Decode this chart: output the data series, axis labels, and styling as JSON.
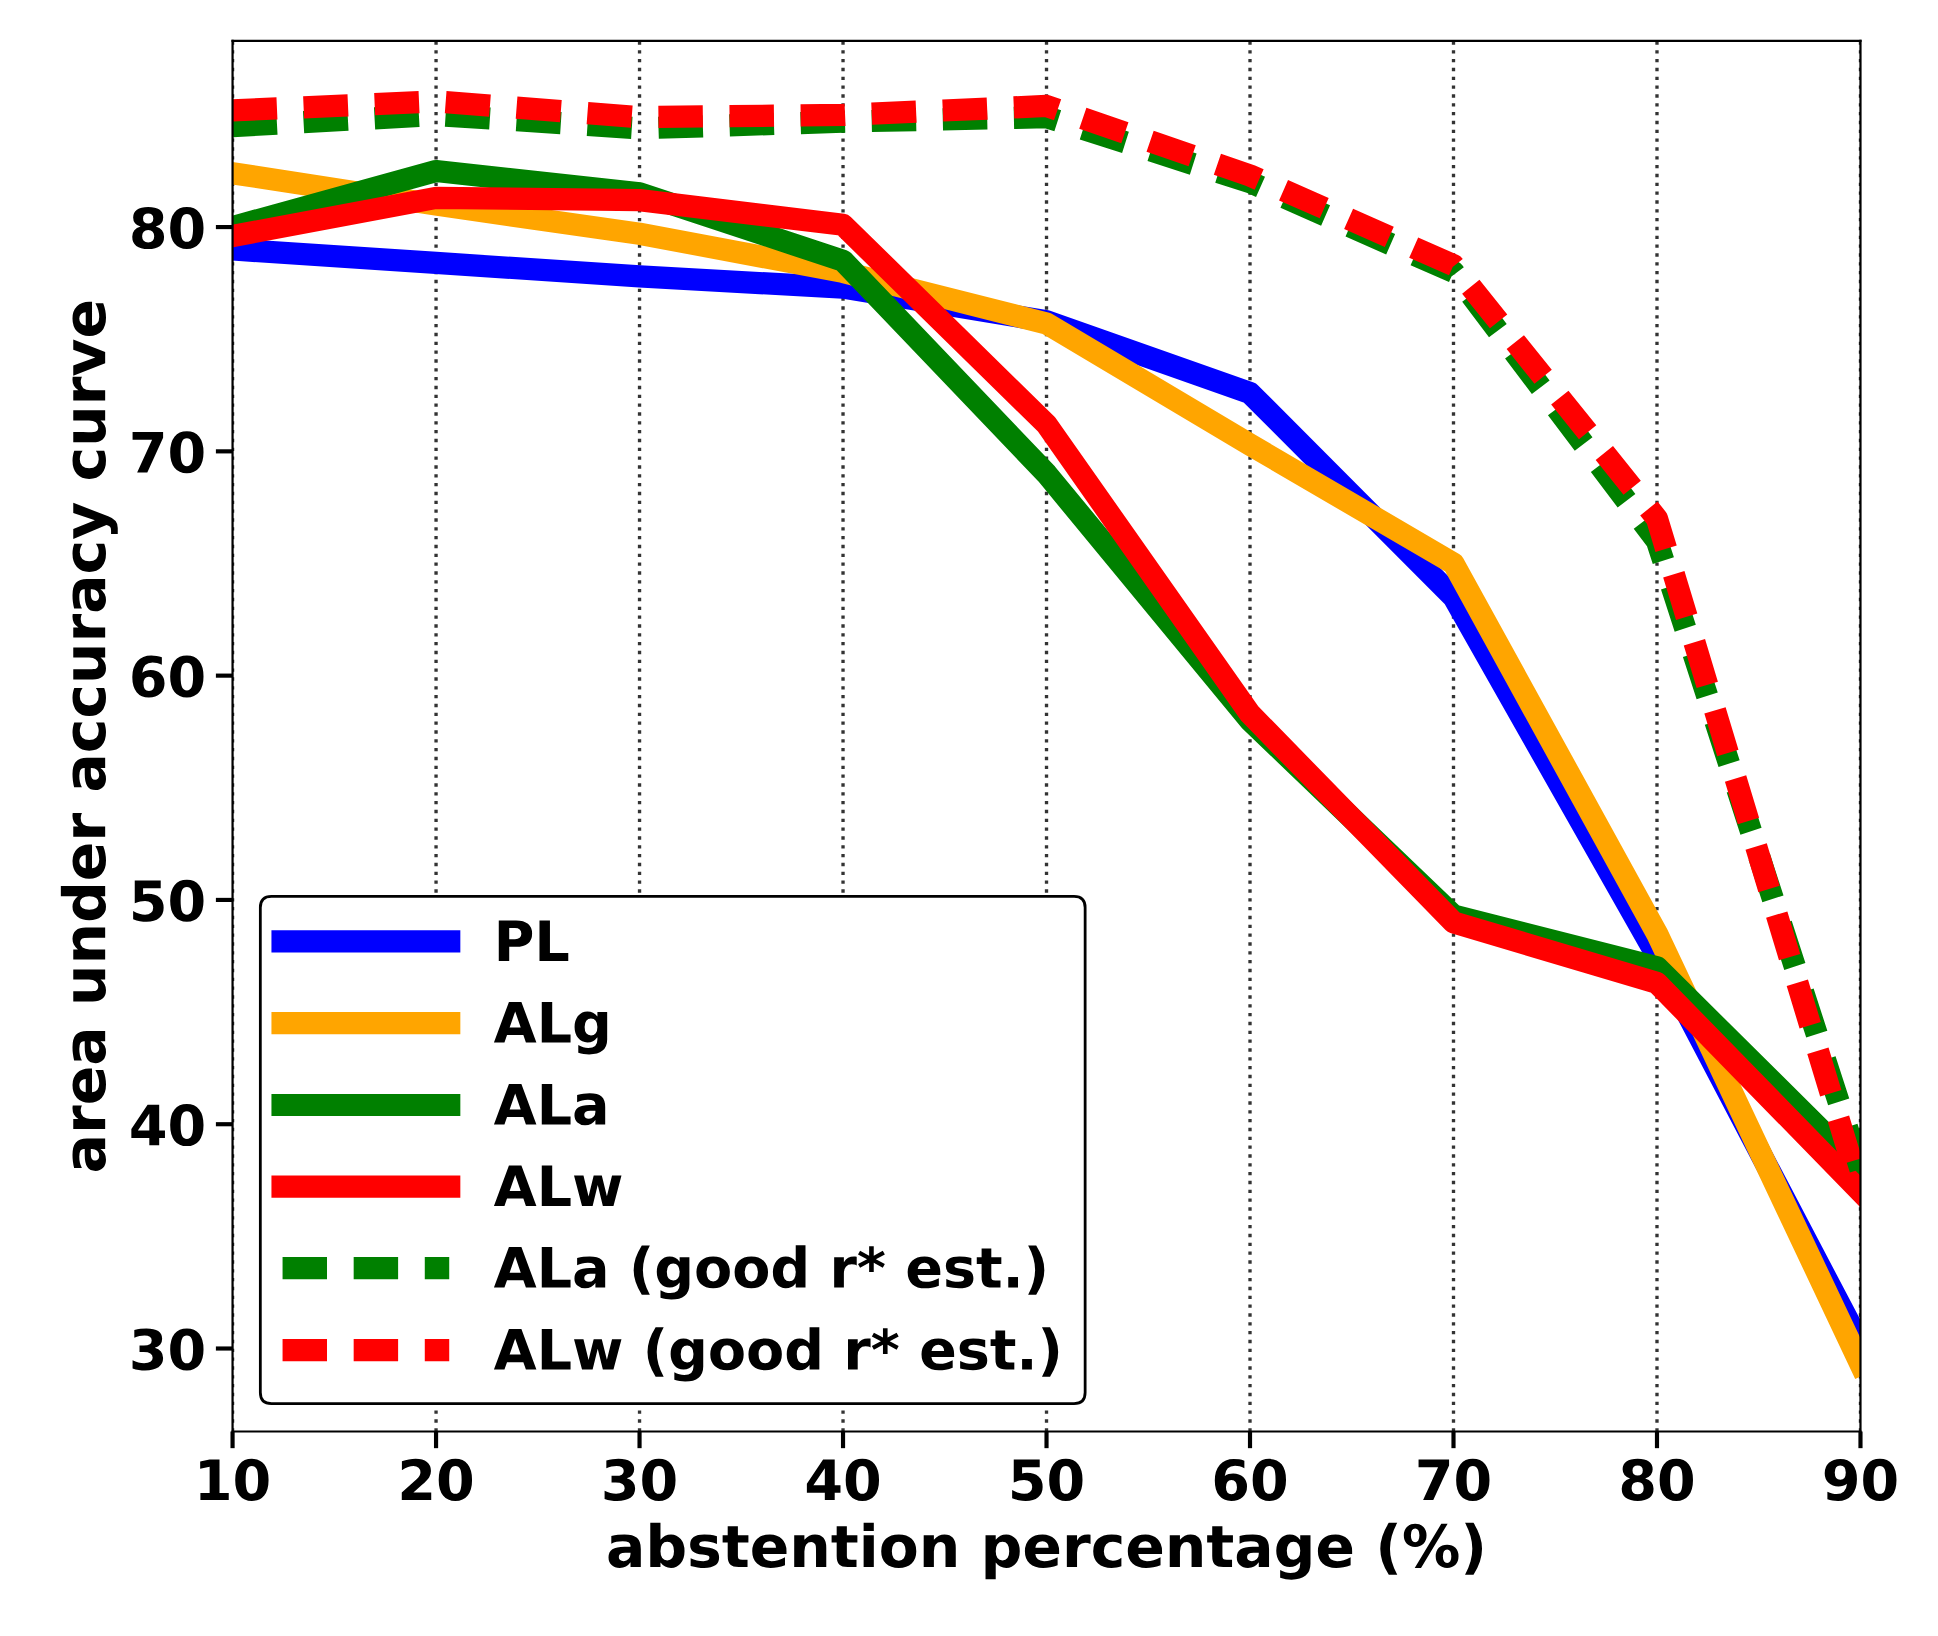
{
  "chart_data": {
    "type": "line",
    "xlabel": "abstention percentage (%)",
    "ylabel": "area under accuracy curve",
    "x": [
      10,
      20,
      30,
      40,
      50,
      60,
      70,
      80,
      90
    ],
    "series": [
      {
        "name": "PL",
        "color": "#0000ff",
        "values": [
          79.0,
          78.4,
          77.8,
          77.3,
          75.8,
          72.6,
          63.5,
          47.5,
          30.2
        ],
        "line_style": "solid"
      },
      {
        "name": "ALg",
        "color": "#ffa500",
        "values": [
          82.4,
          81.0,
          79.7,
          78.0,
          75.7,
          70.3,
          65.0,
          48.5,
          29.3
        ],
        "line_style": "solid"
      },
      {
        "name": "ALa",
        "color": "#008000",
        "values": [
          80.0,
          82.5,
          81.5,
          78.5,
          69.0,
          58.0,
          49.3,
          47.0,
          38.0
        ],
        "line_style": "solid"
      },
      {
        "name": "ALw",
        "color": "#ff0000",
        "values": [
          79.6,
          81.3,
          81.2,
          80.1,
          71.2,
          58.3,
          49.0,
          46.3,
          37.0
        ],
        "line_style": "solid"
      },
      {
        "name": "ALa (good r* est.)",
        "color": "#008000",
        "values": [
          84.5,
          85.0,
          84.4,
          84.7,
          84.9,
          82.0,
          78.0,
          66.0,
          38.0
        ],
        "line_style": "dashed"
      },
      {
        "name": "ALw (good r* est.)",
        "color": "#ff0000",
        "values": [
          85.2,
          85.6,
          84.9,
          85.0,
          85.4,
          82.3,
          78.3,
          67.0,
          37.0
        ],
        "line_style": "dashed"
      }
    ],
    "xlim": [
      10,
      90
    ],
    "xticks": [
      10,
      20,
      30,
      40,
      50,
      60,
      70,
      80,
      90
    ],
    "ylim": [
      26.3,
      88.3
    ],
    "yticks": [
      30,
      40,
      50,
      60,
      70,
      80
    ],
    "grid": "x",
    "legend": "bottom left",
    "marker": "none"
  }
}
